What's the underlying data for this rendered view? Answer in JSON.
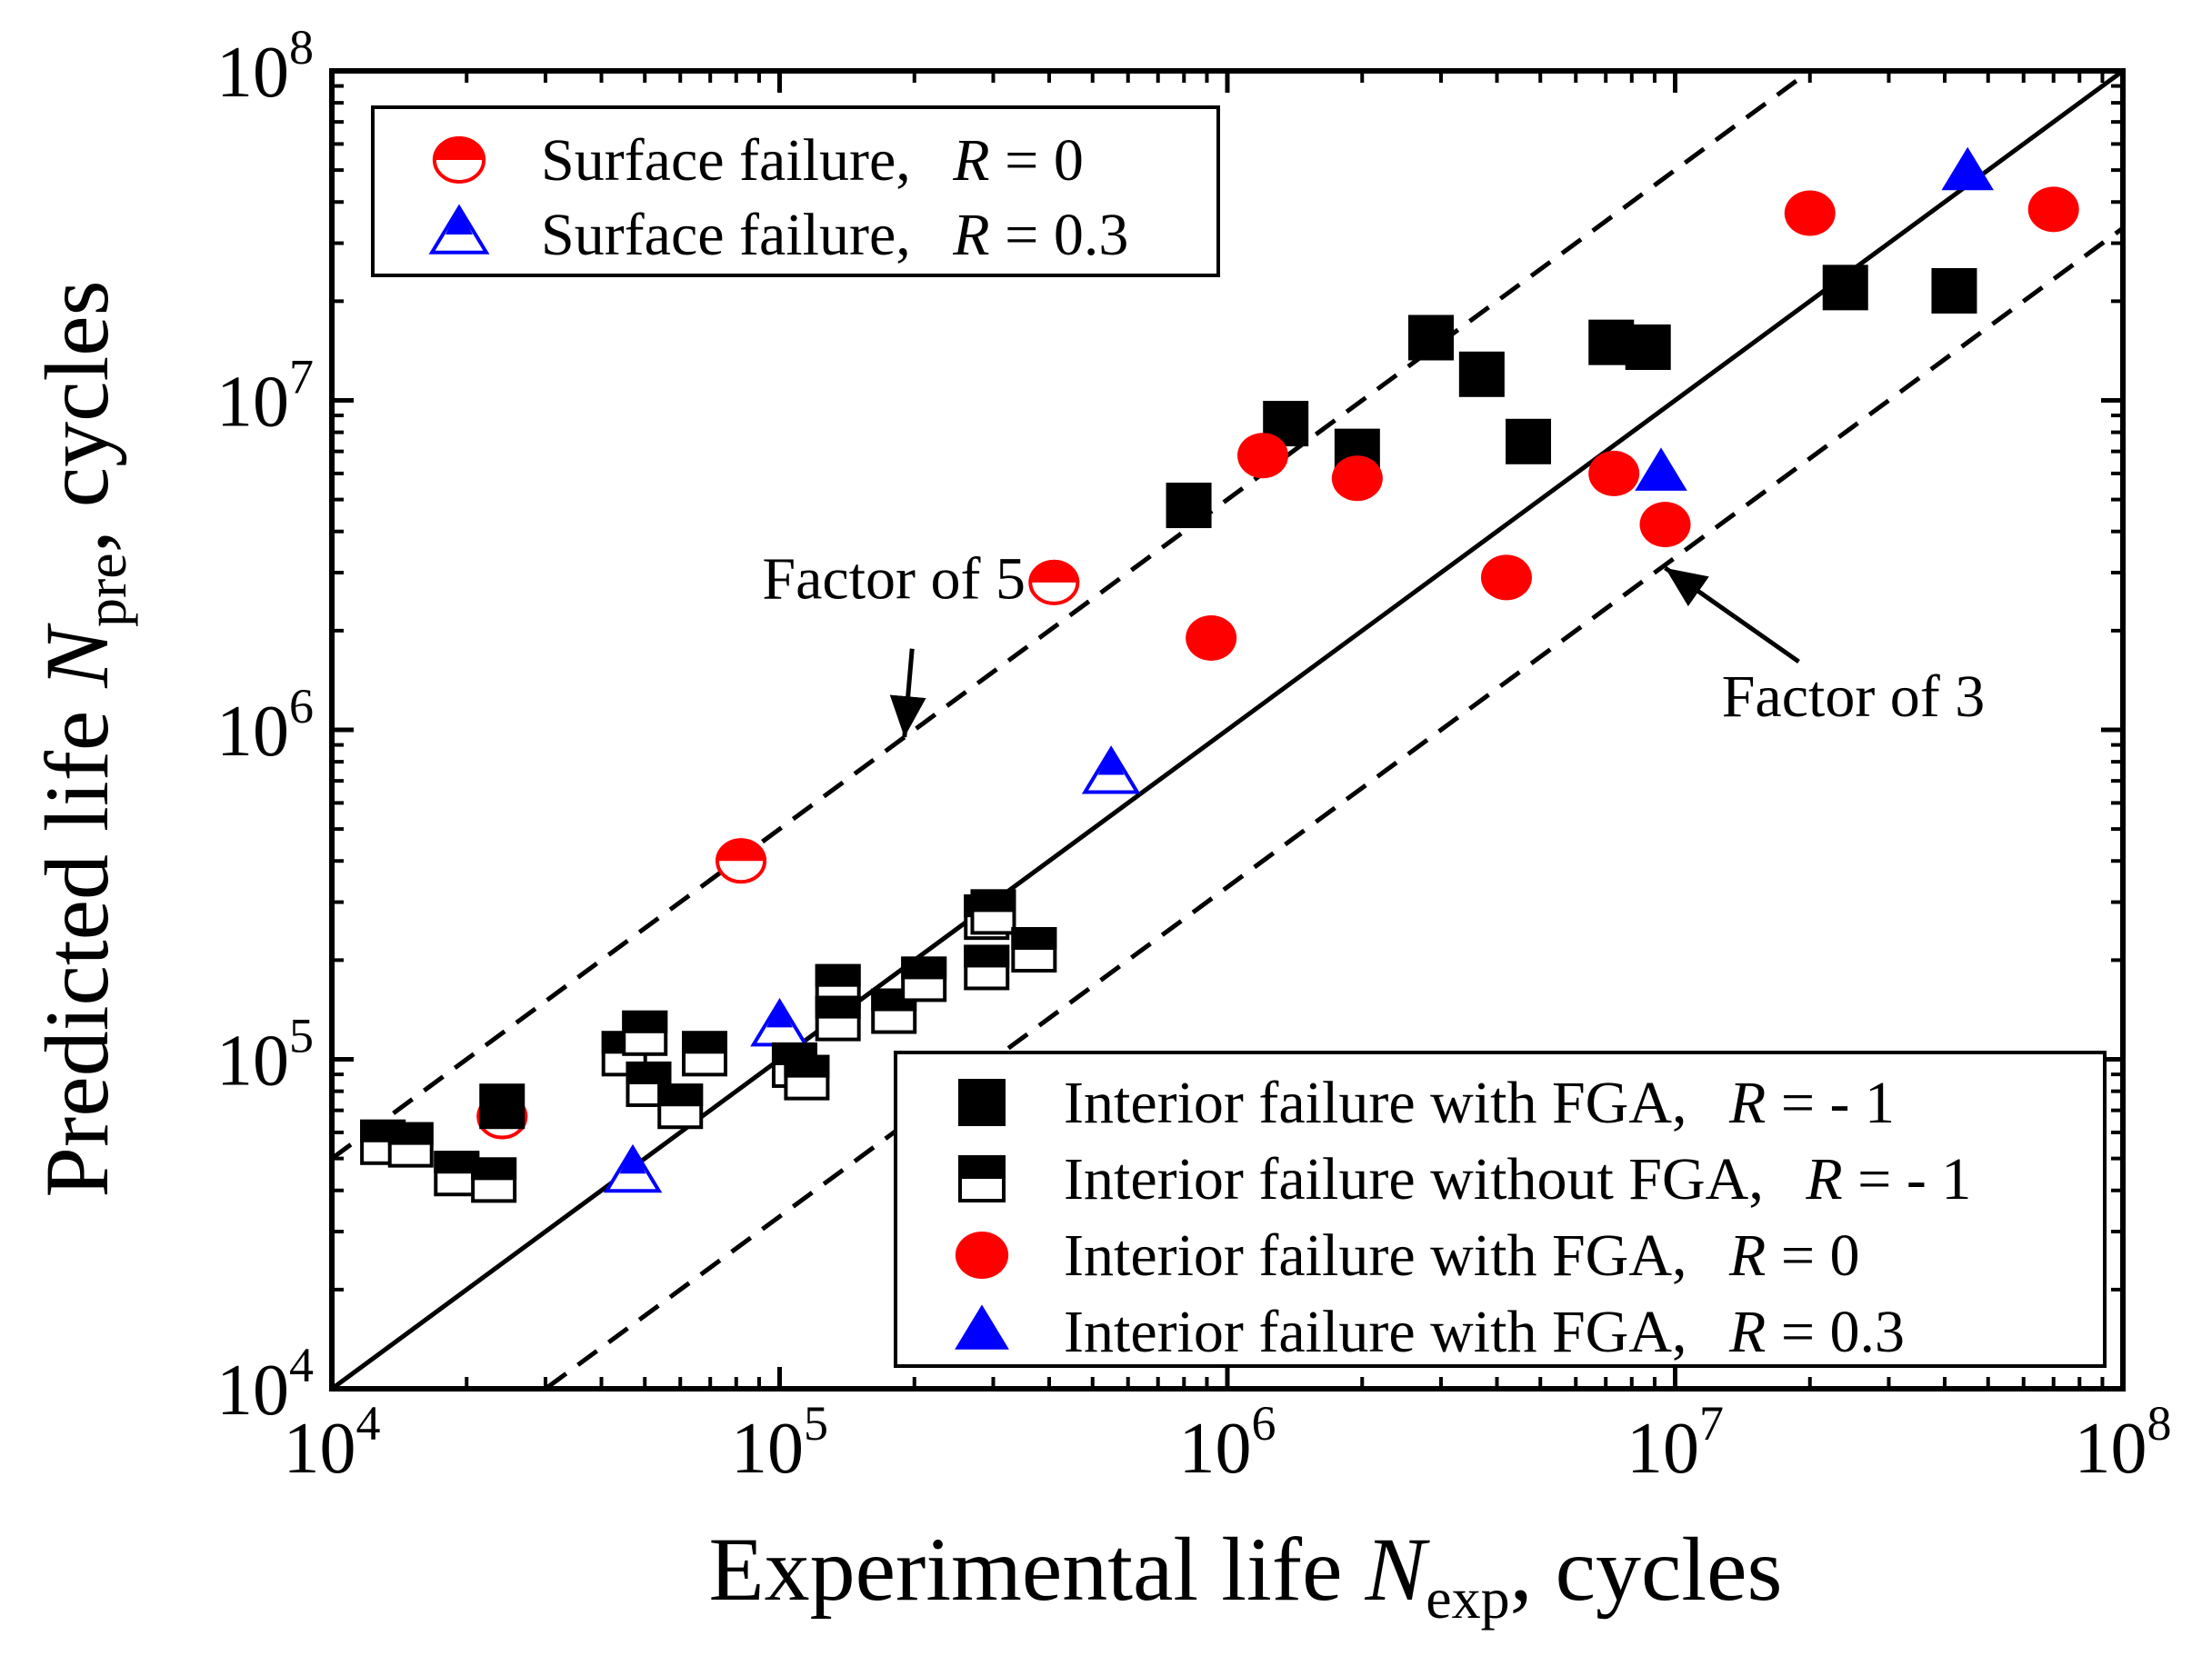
{
  "chart_data": {
    "type": "scatter",
    "xscale": "log",
    "yscale": "log",
    "xlim": [
      10000,
      100000000
    ],
    "ylim": [
      10000,
      100000000
    ],
    "xlabel": {
      "main": "Experimental life ",
      "var": "N",
      "sub": "exp",
      "rest": ", cycles"
    },
    "ylabel": {
      "main": "Predicted life ",
      "var": "N",
      "sub": "pre",
      "rest": ", cycles"
    },
    "ticks": [
      {
        "value": 10000,
        "base": "10",
        "exp": "4"
      },
      {
        "value": 100000,
        "base": "10",
        "exp": "5"
      },
      {
        "value": 1000000,
        "base": "10",
        "exp": "6"
      },
      {
        "value": 10000000,
        "base": "10",
        "exp": "7"
      },
      {
        "value": 100000000,
        "base": "10",
        "exp": "8"
      }
    ],
    "reference_lines": [
      {
        "name": "perfect",
        "factor": 1,
        "style": "solid"
      },
      {
        "name": "upper",
        "factor": 5,
        "style": "dashed"
      },
      {
        "name": "lower",
        "factor": 0.3333,
        "style": "dashed"
      }
    ],
    "annotations": [
      {
        "text": "Factor of 5",
        "text_at": [
          180000,
          2500000
        ],
        "arrow_to": [
          190000,
          950000
        ]
      },
      {
        "text": "Factor of 3",
        "text_at": [
          25000000,
          1100000
        ],
        "arrow_to": [
          9500000,
          3100000
        ]
      }
    ],
    "series": [
      {
        "name": "Surface failure, ",
        "rvar": "R",
        "rval": " = 0",
        "marker": "half-circle",
        "color": "#ff0000",
        "points": [
          [
            24000,
            67000
          ],
          [
            82000,
            400000
          ],
          [
            410000,
            2800000
          ]
        ]
      },
      {
        "name": "Surface failure, ",
        "rvar": "R",
        "rval": " = 0.3",
        "marker": "half-triangle",
        "color": "#0000ff",
        "points": [
          [
            47000,
            45000
          ],
          [
            100000,
            125000
          ],
          [
            550000,
            730000
          ]
        ]
      },
      {
        "name": "Interior failure with FGA, ",
        "rvar": "R",
        "rval": " = - 1",
        "marker": "square",
        "color": "#000000",
        "points": [
          [
            24000,
            72000
          ],
          [
            820000,
            4800000
          ],
          [
            1350000,
            8500000
          ],
          [
            1950000,
            7000000
          ],
          [
            2850000,
            15500000
          ],
          [
            3700000,
            12000000
          ],
          [
            4700000,
            7500000
          ],
          [
            7200000,
            15000000
          ],
          [
            8700000,
            14500000
          ],
          [
            24000000,
            22000000
          ],
          [
            42000000,
            21500000
          ]
        ]
      },
      {
        "name": "Interior failure without FGA, ",
        "rvar": "R",
        "rval": " = - 1",
        "marker": "half-square",
        "color": "#000000",
        "points": [
          [
            13000,
            56000
          ],
          [
            15000,
            55000
          ],
          [
            19000,
            45000
          ],
          [
            23000,
            43000
          ],
          [
            45000,
            104000
          ],
          [
            50000,
            120000
          ],
          [
            51000,
            84000
          ],
          [
            60000,
            72000
          ],
          [
            68000,
            104000
          ],
          [
            108000,
            96000
          ],
          [
            115000,
            88000
          ],
          [
            135000,
            166000
          ],
          [
            135000,
            133000
          ],
          [
            180000,
            140000
          ],
          [
            210000,
            175000
          ],
          [
            290000,
            270000
          ],
          [
            290000,
            190000
          ],
          [
            300000,
            280000
          ],
          [
            370000,
            215000
          ]
        ]
      },
      {
        "name": "Interior failure with FGA, ",
        "rvar": "R",
        "rval": " = 0",
        "marker": "circle",
        "color": "#ff0000",
        "points": [
          [
            920000,
            1900000
          ],
          [
            1200000,
            6800000
          ],
          [
            1950000,
            5800000
          ],
          [
            4200000,
            2900000
          ],
          [
            7300000,
            6000000
          ],
          [
            9500000,
            4200000
          ],
          [
            20000000,
            37000000
          ],
          [
            70000000,
            38000000
          ]
        ]
      },
      {
        "name": "Interior failure with FGA, ",
        "rvar": "R",
        "rval": " = 0.3",
        "marker": "triangle",
        "color": "#0000ff",
        "points": [
          [
            9300000,
            6000000
          ],
          [
            45000000,
            49000000
          ]
        ]
      }
    ],
    "legends": [
      {
        "placement": "top-left",
        "series": [
          0,
          1
        ]
      },
      {
        "placement": "bottom-right",
        "series": [
          2,
          3,
          4,
          5
        ]
      }
    ]
  }
}
